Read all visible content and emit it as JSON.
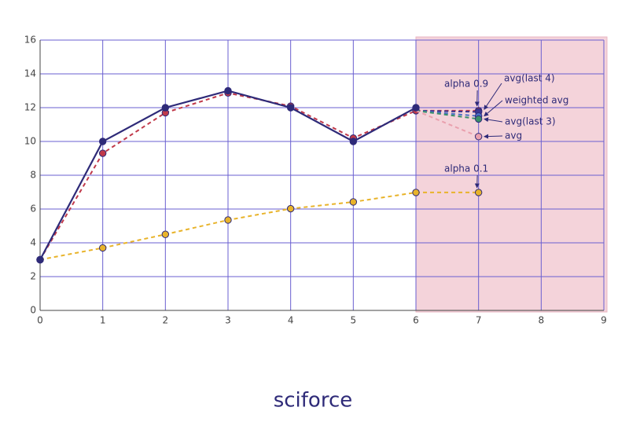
{
  "chart_data": {
    "type": "line",
    "xlim": [
      0,
      9
    ],
    "xticks": [
      0,
      1,
      2,
      3,
      4,
      5,
      6,
      7,
      8,
      9
    ],
    "ylim": [
      0,
      16
    ],
    "yticks": [
      0,
      2,
      4,
      6,
      8,
      10,
      12,
      14,
      16
    ],
    "grid": true,
    "shaded_xrange": [
      6,
      9
    ],
    "series": [
      {
        "color": "#2e2a78",
        "style": "solid",
        "x": [
          0,
          1,
          2,
          3,
          4,
          5,
          6
        ],
        "values": [
          3,
          10,
          12,
          13,
          12,
          10,
          12
        ]
      },
      {
        "name": "alpha 0.9",
        "color": "#c0394a",
        "style": "dashed",
        "x": [
          0,
          1,
          2,
          3,
          4,
          5,
          6,
          7
        ],
        "values": [
          3,
          9.3,
          11.7,
          12.87,
          12.09,
          10.2,
          11.82,
          11.82
        ]
      },
      {
        "name": "alpha 0.1",
        "color": "#e8b32a",
        "style": "dashed",
        "x": [
          0,
          1,
          2,
          3,
          4,
          5,
          6,
          7
        ],
        "values": [
          3,
          3.7,
          4.5,
          5.35,
          6.02,
          6.42,
          6.98,
          6.98
        ]
      },
      {
        "name": "avg(last 4)",
        "color": "#3b3590",
        "style": "dashed",
        "x": [
          6,
          7
        ],
        "values": [
          11.82,
          11.75
        ]
      },
      {
        "name": "weighted avg",
        "color": "#4a6fc4",
        "style": "dashed",
        "x": [
          6,
          7
        ],
        "values": [
          11.82,
          11.5
        ]
      },
      {
        "name": "avg(last 3)",
        "color": "#3a8f6a",
        "style": "dashed",
        "x": [
          6,
          7
        ],
        "values": [
          11.82,
          11.33
        ]
      },
      {
        "name": "avg",
        "color": "#eaa0ae",
        "style": "dashed",
        "x": [
          6,
          7
        ],
        "values": [
          11.82,
          10.29
        ]
      }
    ]
  },
  "logo": "sciforce"
}
